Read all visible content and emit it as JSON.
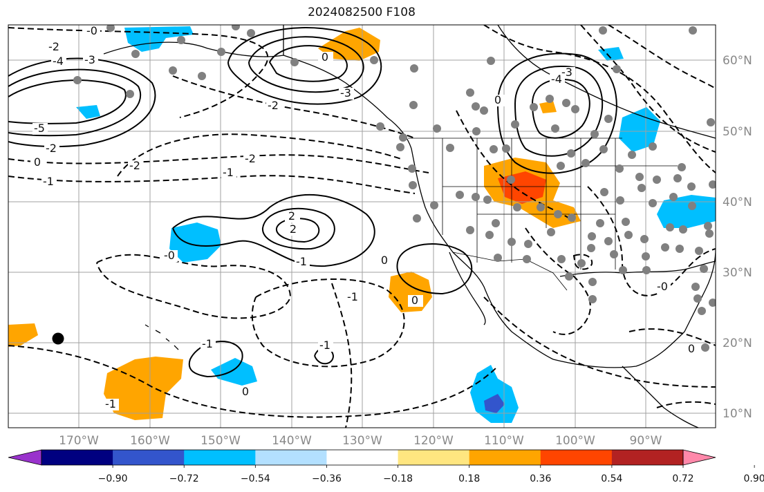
{
  "title": "2024082500 F108",
  "map": {
    "lon_labels": [
      "170°W",
      "160°W",
      "150°W",
      "140°W",
      "130°W",
      "120°W",
      "110°W",
      "100°W",
      "90°W"
    ],
    "lat_labels": [
      "60°N",
      "50°N",
      "40°N",
      "30°N",
      "20°N",
      "10°N"
    ],
    "lon_range": [
      -180,
      -80
    ],
    "lat_range": [
      8,
      65
    ],
    "contour_labels": [
      "-0",
      "-2",
      "-4",
      "-3",
      "-5",
      "-2",
      "0",
      "-1",
      "0",
      "-3",
      "-2",
      "0",
      "-3",
      "-4",
      "-2",
      "-2",
      "-1",
      "2",
      "2",
      "-1",
      "-0",
      "-1",
      "0",
      "-1",
      "-1",
      "0",
      "-1",
      "0",
      "-0",
      "0"
    ],
    "station_count": 110
  },
  "colorbar": {
    "ticks": [
      "−0.90",
      "−0.72",
      "−0.54",
      "−0.36",
      "−0.18",
      "0.18",
      "0.36",
      "0.54",
      "0.72",
      "0.90"
    ],
    "colors": [
      "#9933cc",
      "#000080",
      "#3355cc",
      "#00bfff",
      "#b3e0ff",
      "#ffffff",
      "#ffe680",
      "#ffa500",
      "#ff4500",
      "#b22222",
      "#ff88aa"
    ]
  }
}
